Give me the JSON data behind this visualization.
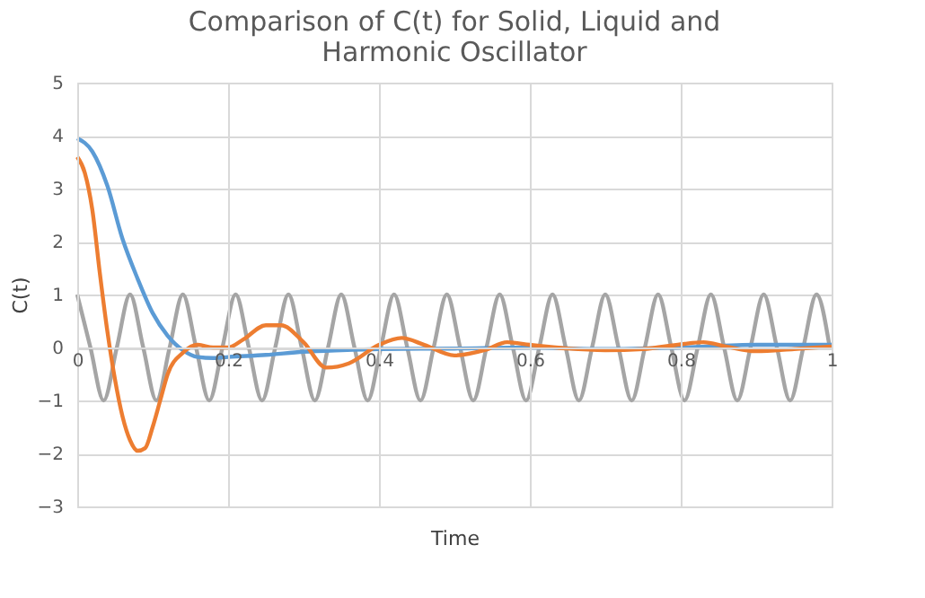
{
  "chart_data": {
    "type": "line",
    "title": "Comparison of C(t) for Solid, Liquid and Harmonic Oscillator",
    "xlabel": "Time",
    "ylabel": "C(t)",
    "xlim": [
      0,
      1
    ],
    "xticks": [
      0,
      0.2,
      0.4,
      0.6,
      0.8,
      1
    ],
    "ylim": [
      -3,
      5
    ],
    "yticks": [
      -3,
      -2,
      -1,
      0,
      1,
      2,
      3,
      4,
      5
    ],
    "grid": true,
    "legend": false,
    "marker": "none",
    "line_style": "solid",
    "series": [
      {
        "color": "#a5a5a5",
        "x": [
          0,
          0.0175,
          0.035,
          0.0525,
          0.07,
          0.0875,
          0.105,
          0.1225,
          0.14,
          0.1575,
          0.175,
          0.1925,
          0.21,
          0.2275,
          0.245,
          0.2625,
          0.28,
          0.2975,
          0.315,
          0.3325,
          0.35,
          0.3675,
          0.385,
          0.4025,
          0.42,
          0.4375,
          0.455,
          0.4725,
          0.49,
          0.5075,
          0.525,
          0.5425,
          0.56,
          0.5775,
          0.595,
          0.6125,
          0.63,
          0.6475,
          0.665,
          0.6825,
          0.7,
          0.7175,
          0.735,
          0.7525,
          0.77,
          0.7875,
          0.805,
          0.8225,
          0.84,
          0.8575,
          0.875,
          0.8925,
          0.91,
          0.9275,
          0.945,
          0.9625,
          0.98,
          0.9975
        ],
        "values": [
          1,
          0,
          -1,
          0,
          1,
          0,
          -1,
          0,
          1,
          0,
          -1,
          0,
          1,
          0,
          -1,
          0,
          1,
          0,
          -1,
          0,
          1,
          0,
          -1,
          0,
          1,
          0,
          -1,
          0,
          1,
          0,
          -1,
          0,
          1,
          0,
          -1,
          0,
          1,
          0,
          -1,
          0,
          1,
          0,
          -1,
          0,
          1,
          0,
          -1,
          0,
          1,
          0,
          -1,
          0,
          1,
          0,
          -1,
          0,
          1,
          0
        ]
      },
      {
        "color": "#5b9bd5",
        "x": [
          0,
          0.02,
          0.04,
          0.06,
          0.08,
          0.1,
          0.12,
          0.14,
          0.16,
          0.18,
          0.2,
          0.25,
          0.3,
          0.35,
          0.4,
          0.5,
          0.6,
          0.7,
          0.8,
          0.9,
          1
        ],
        "values": [
          3.95,
          3.7,
          3.05,
          2.05,
          1.3,
          0.65,
          0.22,
          -0.05,
          -0.18,
          -0.2,
          -0.18,
          -0.14,
          -0.08,
          -0.05,
          -0.03,
          -0.02,
          0,
          -0.03,
          0,
          0.05,
          0.05
        ]
      },
      {
        "color": "#ed7d31",
        "x": [
          0,
          0.01,
          0.02,
          0.03,
          0.04,
          0.05,
          0.06,
          0.07,
          0.08,
          0.09,
          0.1,
          0.11,
          0.12,
          0.14,
          0.16,
          0.18,
          0.2,
          0.22,
          0.25,
          0.27,
          0.3,
          0.33,
          0.36,
          0.4,
          0.43,
          0.46,
          0.5,
          0.54,
          0.57,
          0.6,
          0.65,
          0.7,
          0.75,
          0.8,
          0.83,
          0.86,
          0.9,
          0.95,
          1
        ],
        "values": [
          3.6,
          3.3,
          2.6,
          1.4,
          0.3,
          -0.6,
          -1.3,
          -1.75,
          -1.95,
          -1.9,
          -1.5,
          -1.0,
          -0.5,
          -0.1,
          0.05,
          0,
          0,
          0.15,
          0.42,
          0.42,
          0.1,
          -0.38,
          -0.3,
          0.05,
          0.18,
          0.05,
          -0.15,
          -0.05,
          0.1,
          0.05,
          -0.02,
          -0.05,
          -0.03,
          0.06,
          0.1,
          0.02,
          -0.07,
          -0.03,
          0.02
        ]
      }
    ]
  }
}
